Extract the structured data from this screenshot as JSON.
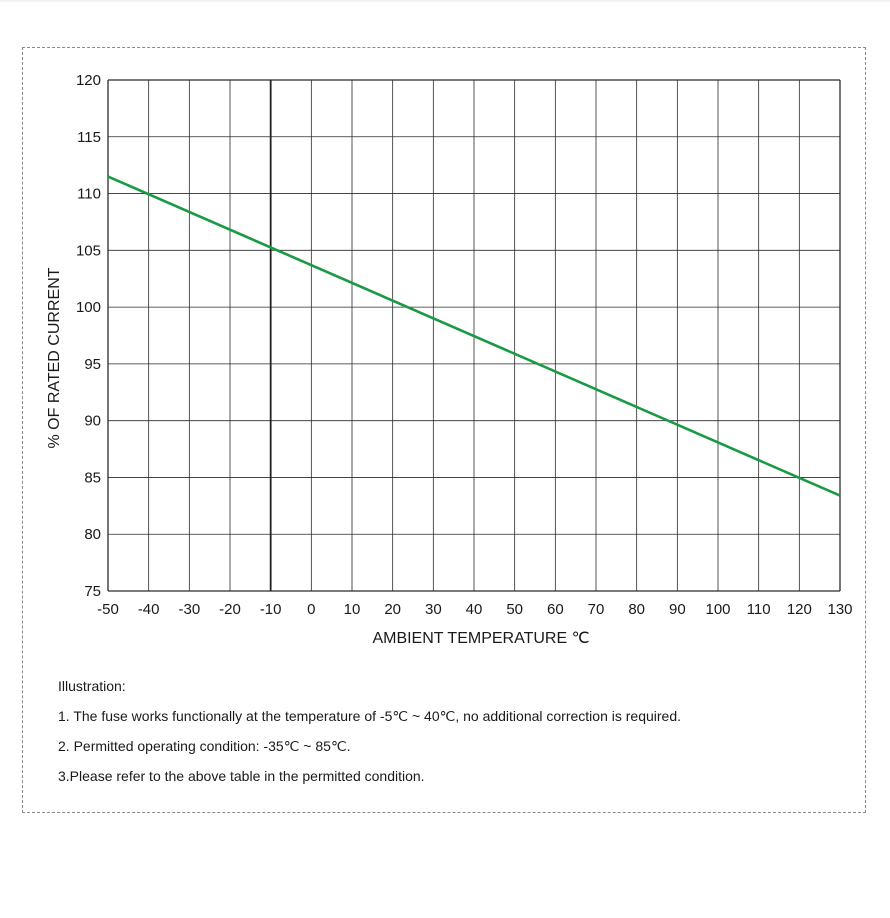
{
  "chart_data": {
    "type": "line",
    "title": "",
    "xlabel": "AMBIENT TEMPERATURE ℃",
    "ylabel": "% OF RATED CURRENT",
    "xlim": [
      -50,
      130
    ],
    "ylim": [
      75,
      120
    ],
    "x_ticks": [
      -50,
      -40,
      -30,
      -20,
      -10,
      0,
      10,
      20,
      30,
      40,
      50,
      60,
      70,
      80,
      90,
      100,
      110,
      120,
      130
    ],
    "y_ticks": [
      75,
      80,
      85,
      90,
      95,
      100,
      105,
      110,
      115,
      120
    ],
    "grid": true,
    "reference_line_x": -10,
    "series": [
      {
        "color": "#1a9a45",
        "x": [
          -50,
          130
        ],
        "y": [
          111.5,
          83.4
        ]
      }
    ]
  },
  "notes": {
    "heading": "Illustration:",
    "items": [
      "1. The fuse works functionally at the temperature of -5℃ ~ 40℃, no additional correction is required.",
      "2. Permitted operating condition: -35℃ ~ 85℃.",
      "3.Please refer to the above table in the permitted condition."
    ]
  }
}
